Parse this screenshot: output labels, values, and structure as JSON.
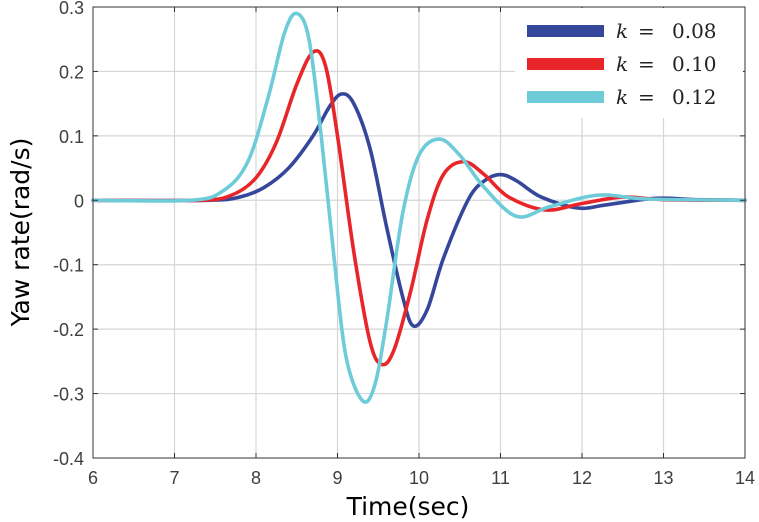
{
  "chart_data": {
    "type": "line",
    "title": "",
    "xlabel": "Time(sec)",
    "ylabel": "Yaw rate(rad/s)",
    "xlim": [
      6,
      14
    ],
    "ylim": [
      -0.4,
      0.3
    ],
    "xticks": [
      6,
      7,
      8,
      9,
      10,
      11,
      12,
      13,
      14
    ],
    "yticks": [
      0.3,
      0.2,
      0.1,
      0,
      -0.1,
      -0.2,
      -0.3,
      -0.4
    ],
    "xtick_labels": [
      "6",
      "7",
      "8",
      "9",
      "10",
      "11",
      "12",
      "13",
      "14"
    ],
    "ytick_labels": [
      "0.3",
      "0.2",
      "0.1",
      "0",
      "-0.1",
      "-0.2",
      "-0.3",
      "-0.4"
    ],
    "grid": true,
    "legend_position": "upper right",
    "series": [
      {
        "name": "k = 0.08",
        "k_symbol": "k",
        "k_value": "0.08",
        "color": "#34479b",
        "x": [
          6,
          7.4,
          7.8,
          8.1,
          8.4,
          8.7,
          8.9,
          9.05,
          9.2,
          9.4,
          9.6,
          9.8,
          9.93,
          10.1,
          10.3,
          10.6,
          10.8,
          11.0,
          11.2,
          11.5,
          11.95,
          12.3,
          12.9,
          13.4,
          14
        ],
        "y": [
          0,
          0,
          0.005,
          0.02,
          0.05,
          0.1,
          0.145,
          0.165,
          0.15,
          0.08,
          -0.04,
          -0.15,
          -0.195,
          -0.17,
          -0.09,
          0.0,
          0.03,
          0.04,
          0.03,
          0.005,
          -0.012,
          -0.007,
          0.003,
          0.001,
          0
        ]
      },
      {
        "name": "k = 0.10",
        "k_symbol": "k",
        "k_value": "0.10",
        "color": "#e8262a",
        "x": [
          6,
          7.3,
          7.7,
          8.0,
          8.25,
          8.5,
          8.7,
          8.85,
          9.0,
          9.2,
          9.4,
          9.55,
          9.7,
          9.9,
          10.1,
          10.3,
          10.55,
          10.8,
          11.1,
          11.55,
          12.0,
          12.5,
          13.0,
          14
        ],
        "y": [
          0,
          0,
          0.008,
          0.035,
          0.09,
          0.18,
          0.23,
          0.21,
          0.1,
          -0.08,
          -0.22,
          -0.255,
          -0.23,
          -0.14,
          -0.03,
          0.04,
          0.06,
          0.04,
          0.005,
          -0.015,
          -0.005,
          0.005,
          0.001,
          0
        ]
      },
      {
        "name": "k = 0.12",
        "k_symbol": "k",
        "k_value": "0.12",
        "color": "#6ecbd8",
        "x": [
          6,
          7.2,
          7.6,
          7.9,
          8.15,
          8.35,
          8.5,
          8.65,
          8.8,
          8.95,
          9.1,
          9.3,
          9.45,
          9.6,
          9.8,
          10.0,
          10.25,
          10.5,
          10.8,
          11.2,
          11.6,
          12.2,
          12.8,
          14
        ],
        "y": [
          0,
          0,
          0.015,
          0.06,
          0.16,
          0.26,
          0.29,
          0.25,
          0.1,
          -0.08,
          -0.24,
          -0.31,
          -0.29,
          -0.19,
          -0.02,
          0.07,
          0.095,
          0.07,
          0.02,
          -0.025,
          -0.01,
          0.008,
          0.002,
          0
        ]
      }
    ]
  }
}
